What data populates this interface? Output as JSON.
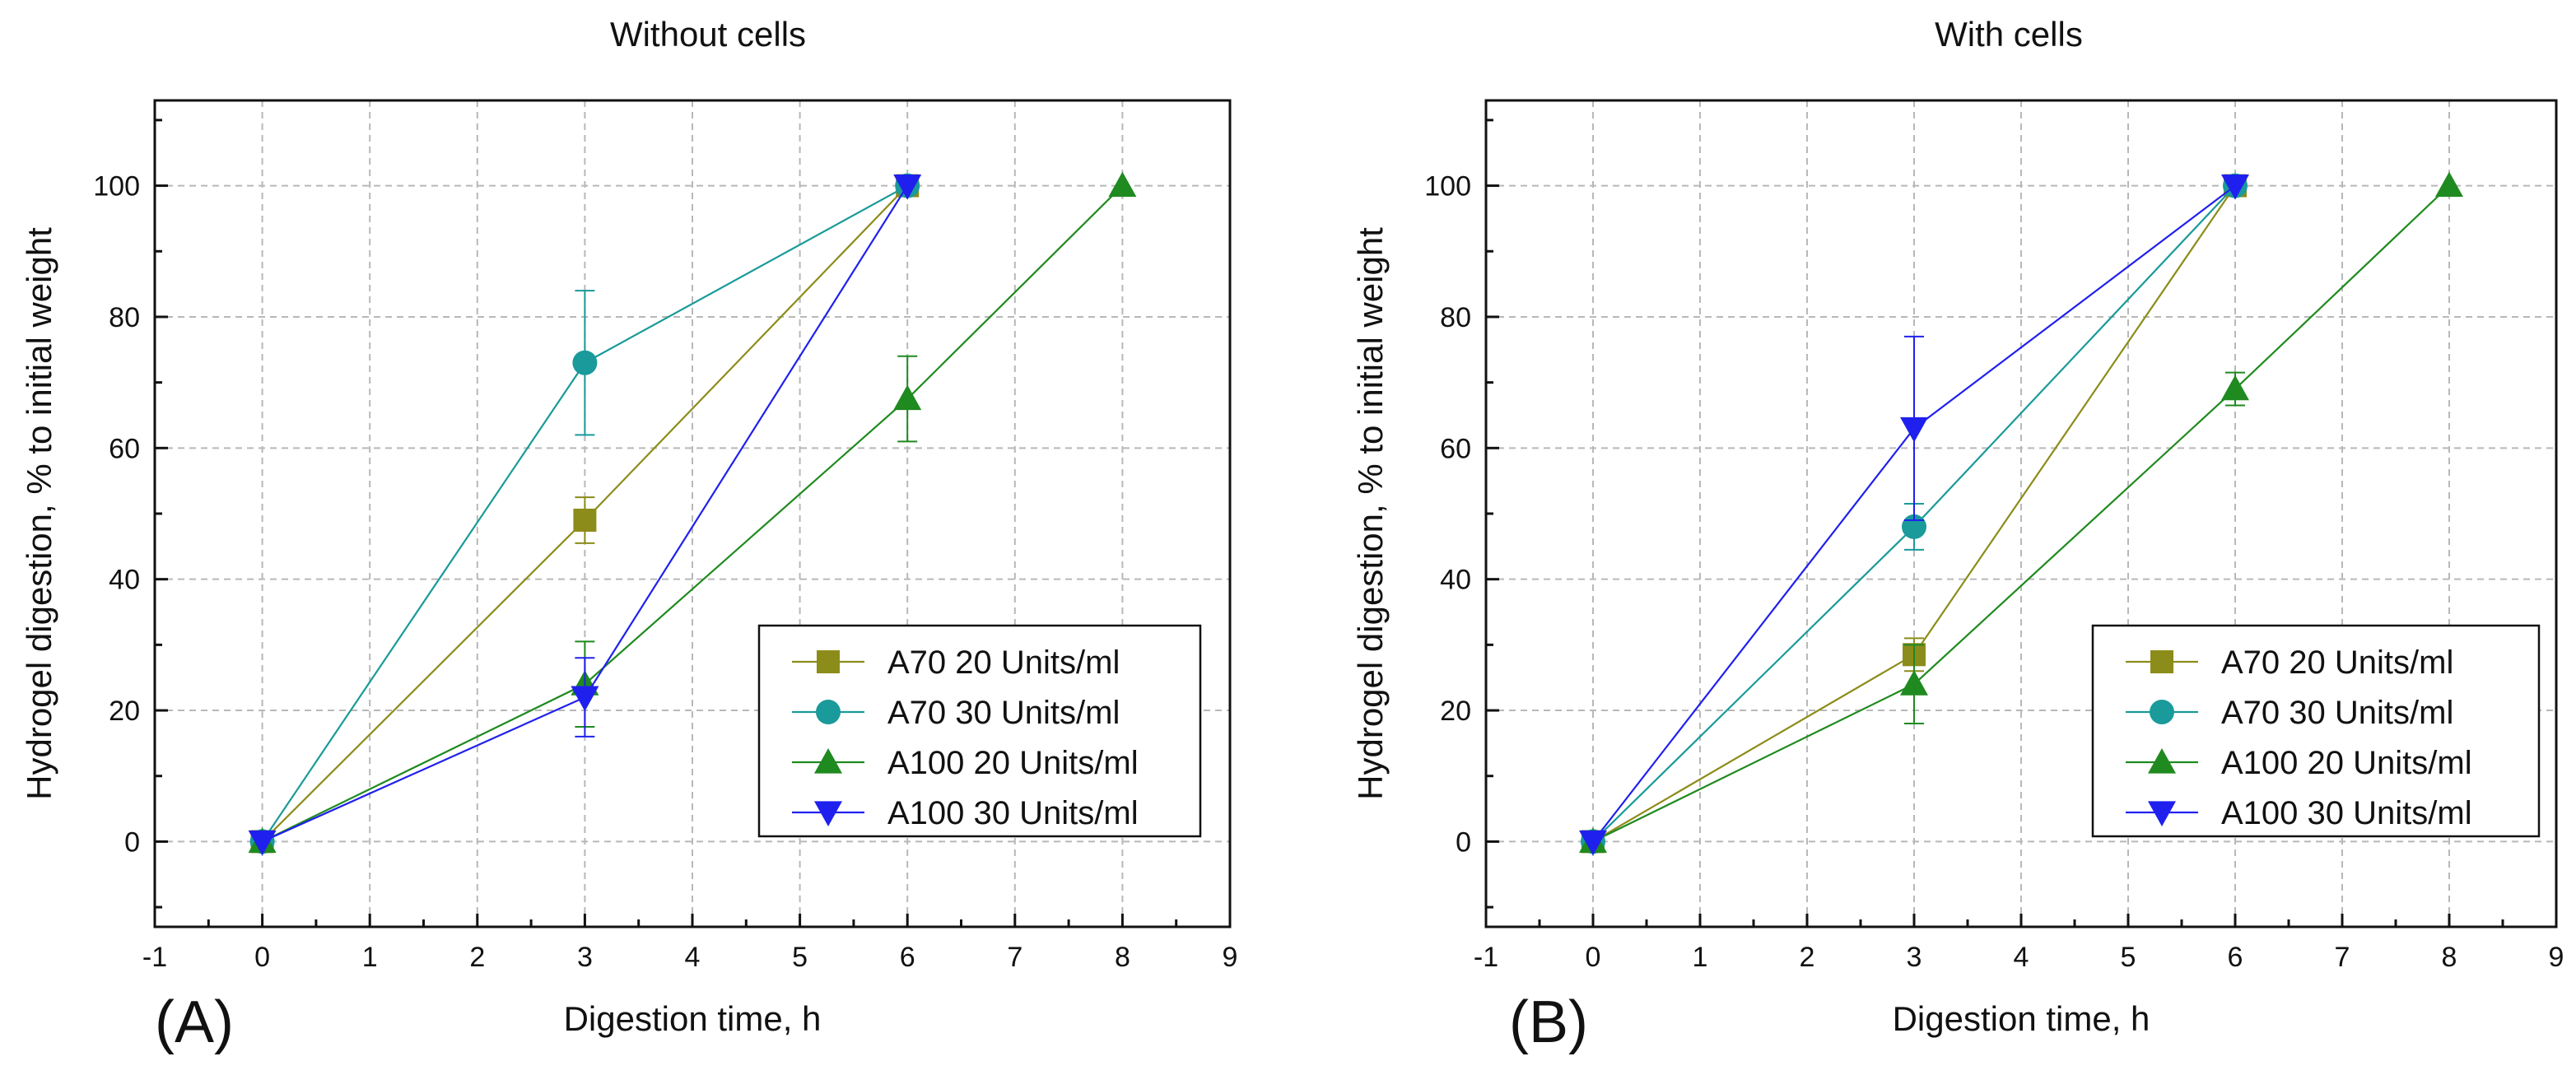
{
  "chart_data": [
    {
      "type": "line",
      "panel_label": "(A)",
      "title": "Without cells",
      "xlabel": "Digestion time, h",
      "ylabel": "Hydrogel digestion, % to initial weight",
      "xlim": [
        -1,
        9
      ],
      "ylim": [
        -13,
        113
      ],
      "xticks": [
        -1,
        0,
        1,
        2,
        3,
        4,
        5,
        6,
        7,
        8,
        9
      ],
      "yticks": [
        0,
        20,
        40,
        60,
        80,
        100
      ],
      "grid": true,
      "legend_position": "bottom-right",
      "series": [
        {
          "name": "A70 20 Units/ml",
          "marker": "square",
          "color": "#8c8c1a",
          "x": [
            0,
            3,
            6
          ],
          "y": [
            0,
            49,
            100
          ],
          "err": [
            0,
            3.5,
            0
          ]
        },
        {
          "name": "A70 30 Units/ml",
          "marker": "circle",
          "color": "#1a9a9a",
          "x": [
            0,
            3,
            6
          ],
          "y": [
            0,
            73,
            100
          ],
          "err": [
            0,
            11,
            0
          ]
        },
        {
          "name": "A100 20 Units/ml",
          "marker": "triangle-up",
          "color": "#1f8a1f",
          "x": [
            0,
            3,
            6,
            8
          ],
          "y": [
            0,
            24,
            67.5,
            100
          ],
          "err": [
            0,
            6.5,
            6.5,
            0
          ]
        },
        {
          "name": "A100 30 Units/ml",
          "marker": "triangle-down",
          "color": "#2020ee",
          "x": [
            0,
            3,
            6
          ],
          "y": [
            0,
            22,
            100
          ],
          "err": [
            0,
            6,
            0
          ]
        }
      ]
    },
    {
      "type": "line",
      "panel_label": "(B)",
      "title": "With cells",
      "xlabel": "Digestion time, h",
      "ylabel": "Hydrogel digestion, % to initial weight",
      "xlim": [
        -1,
        9
      ],
      "ylim": [
        -13,
        113
      ],
      "xticks": [
        -1,
        0,
        1,
        2,
        3,
        4,
        5,
        6,
        7,
        8,
        9
      ],
      "yticks": [
        0,
        20,
        40,
        60,
        80,
        100
      ],
      "grid": true,
      "legend_position": "bottom-right",
      "series": [
        {
          "name": "A70 20 Units/ml",
          "marker": "square",
          "color": "#8c8c1a",
          "x": [
            0,
            3,
            6
          ],
          "y": [
            0,
            28.5,
            100
          ],
          "err": [
            0,
            2.5,
            0
          ]
        },
        {
          "name": "A70 30 Units/ml",
          "marker": "circle",
          "color": "#1a9a9a",
          "x": [
            0,
            3,
            6
          ],
          "y": [
            0,
            48,
            100
          ],
          "err": [
            0,
            3.5,
            0
          ]
        },
        {
          "name": "A100 20 Units/ml",
          "marker": "triangle-up",
          "color": "#1f8a1f",
          "x": [
            0,
            3,
            6,
            8
          ],
          "y": [
            0,
            24,
            69,
            100
          ],
          "err": [
            0,
            6,
            2.5,
            0
          ]
        },
        {
          "name": "A100 30 Units/ml",
          "marker": "triangle-down",
          "color": "#2020ee",
          "x": [
            0,
            3,
            6
          ],
          "y": [
            0,
            63,
            100
          ],
          "err": [
            0,
            14,
            0
          ]
        }
      ]
    }
  ]
}
